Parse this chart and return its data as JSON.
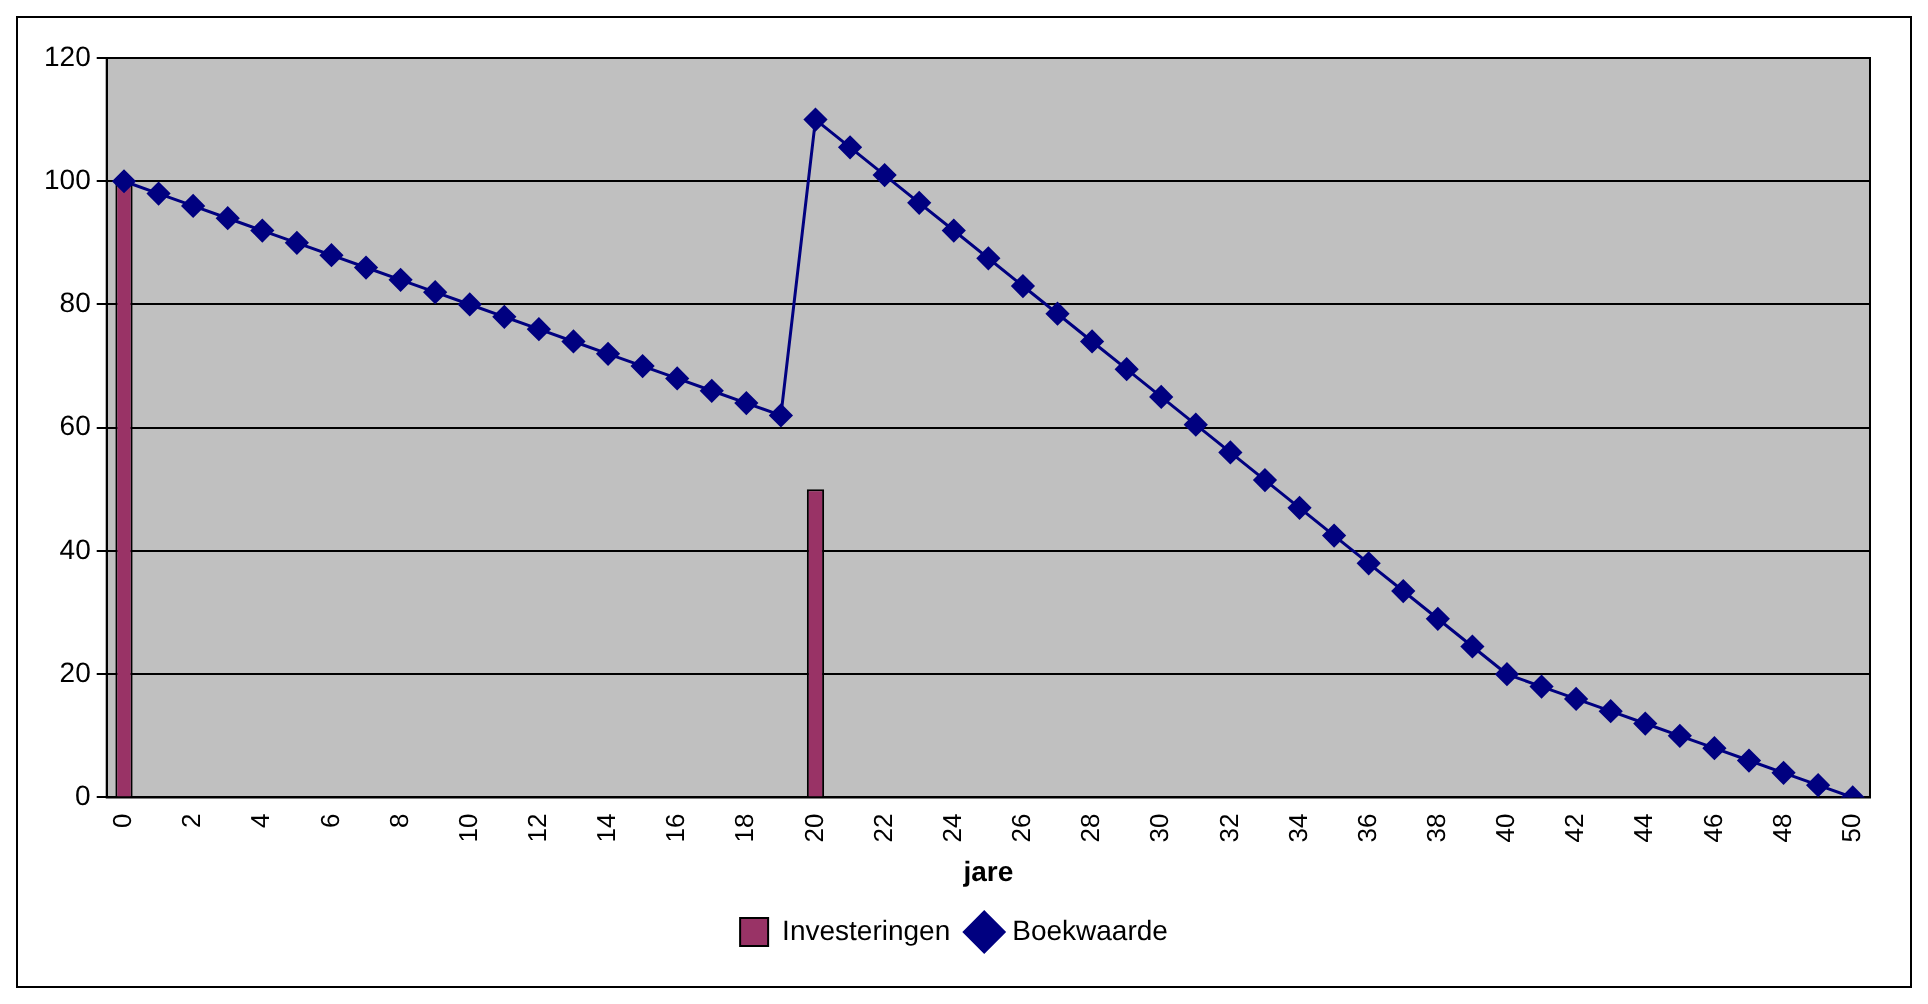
{
  "chart_data": {
    "type": "bar",
    "xlabel": "jare",
    "categories": [
      "0",
      null,
      "2",
      null,
      "4",
      null,
      "6",
      null,
      "8",
      null,
      "10",
      null,
      "12",
      null,
      "14",
      null,
      "16",
      null,
      "18",
      null,
      "20",
      null,
      "22",
      null,
      "24",
      null,
      "26",
      null,
      "28",
      null,
      "30",
      null,
      "32",
      null,
      "34",
      null,
      "36",
      null,
      "38",
      null,
      "40",
      null,
      "42",
      null,
      "44",
      null,
      "46",
      null,
      "48",
      null,
      "50"
    ],
    "series": [
      {
        "name": "Investeringen",
        "color": "#993366",
        "values": [
          100,
          0,
          0,
          0,
          0,
          0,
          0,
          0,
          0,
          0,
          0,
          0,
          0,
          0,
          0,
          0,
          0,
          0,
          0,
          0,
          50,
          0,
          0,
          0,
          0,
          0,
          0,
          0,
          0,
          0,
          0,
          0,
          0,
          0,
          0,
          0,
          0,
          0,
          0,
          0,
          0,
          0,
          0,
          0,
          0,
          0,
          0,
          0,
          0,
          0,
          0
        ]
      },
      {
        "name": "Boekwaarde",
        "type": "line",
        "color": "#000080",
        "marker": "diamond",
        "values": [
          100,
          98,
          96,
          94,
          92,
          90,
          88,
          86,
          84,
          82,
          80,
          78,
          76,
          74,
          72,
          70,
          68,
          66,
          64,
          62,
          110,
          105.5,
          101,
          96.5,
          92,
          87.5,
          83,
          78.5,
          74,
          69.5,
          65,
          60.5,
          56,
          51.5,
          47,
          42.5,
          38,
          33.5,
          29,
          24.5,
          20,
          18,
          16,
          14,
          12,
          10,
          8,
          6,
          4,
          2,
          0
        ]
      }
    ],
    "ylim": [
      0,
      120
    ],
    "yticks": [
      0,
      20,
      40,
      60,
      80,
      100,
      120
    ],
    "grid": "y",
    "legend": "bottom"
  }
}
